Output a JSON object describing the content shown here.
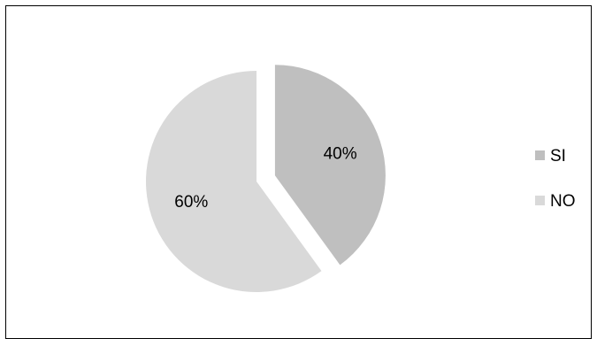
{
  "chart_data": {
    "type": "pie",
    "categories": [
      "SI",
      "NO"
    ],
    "values": [
      40,
      60
    ],
    "data_labels": [
      "40%",
      "60%"
    ],
    "colors": [
      "#bfbfbf",
      "#d9d9d9"
    ],
    "exploded": [
      "SI"
    ],
    "legend": {
      "position": "right",
      "entries": [
        {
          "label": "SI",
          "color": "#bfbfbf"
        },
        {
          "label": "NO",
          "color": "#d9d9d9"
        }
      ]
    }
  }
}
